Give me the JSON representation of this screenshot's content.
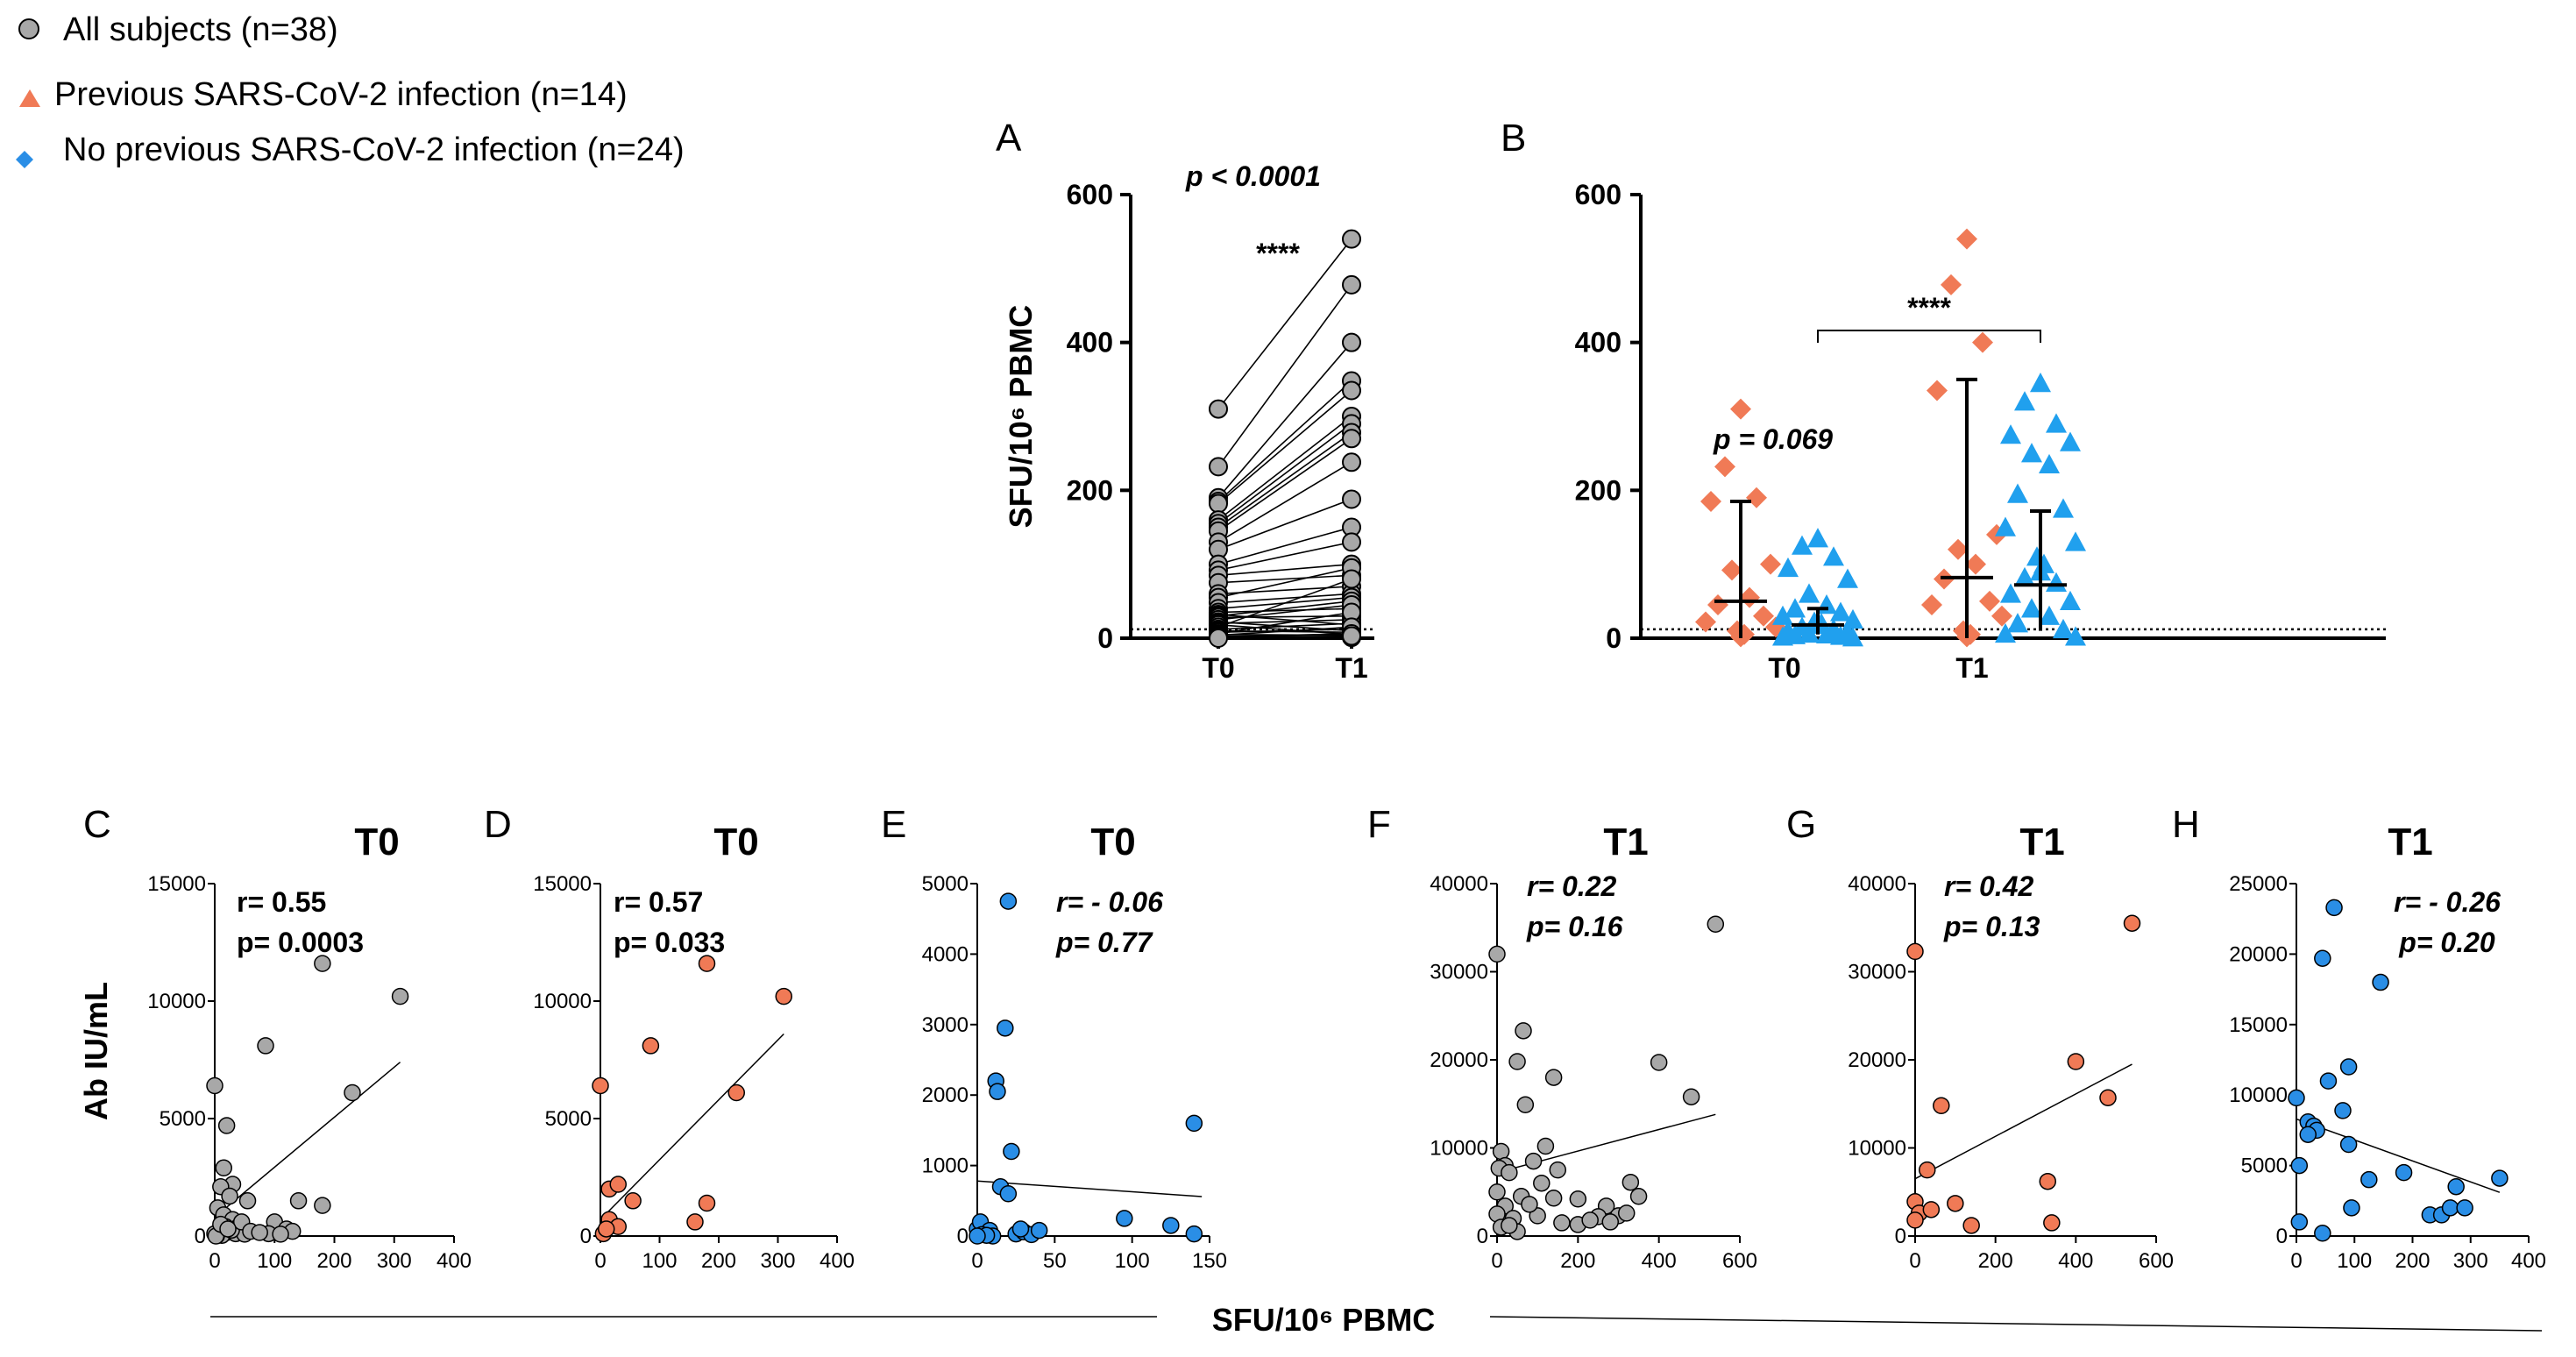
{
  "colors": {
    "gray": "#a8a8a8",
    "orange": "#f07a56",
    "blue": "#2a8ee6",
    "lightblue": "#20a0ee",
    "axis": "#000000"
  },
  "legend": [
    {
      "label": "All subjects (n=38)",
      "marker": "circle",
      "color": "#a8a8a8"
    },
    {
      "label": "Previous SARS-CoV-2 infection (n=14)",
      "marker": "triangle",
      "color": "#f07a56"
    },
    {
      "label": "No previous SARS-CoV-2 infection (n=24)",
      "marker": "diamond",
      "color": "#2a8ee6"
    }
  ],
  "shared_x_label": "SFU/10⁶ PBMC",
  "chart_data": [
    {
      "id": "A",
      "panel": "A",
      "type": "scatter",
      "title": "",
      "ylabel": "SFU/10⁶ PBMC",
      "categories": [
        "T0",
        "T1"
      ],
      "ylim": [
        0,
        600
      ],
      "yticks": [
        "0",
        "200",
        "400",
        "600"
      ],
      "annotation": "p < 0.0001",
      "stars": "****",
      "threshold": 12,
      "pairs": [
        [
          310,
          540
        ],
        [
          232,
          478
        ],
        [
          190,
          400
        ],
        [
          185,
          348
        ],
        [
          182,
          335
        ],
        [
          160,
          300
        ],
        [
          155,
          290
        ],
        [
          150,
          278
        ],
        [
          145,
          270
        ],
        [
          130,
          238
        ],
        [
          120,
          188
        ],
        [
          100,
          150
        ],
        [
          92,
          130
        ],
        [
          85,
          100
        ],
        [
          75,
          85
        ],
        [
          60,
          70
        ],
        [
          55,
          95
        ],
        [
          48,
          60
        ],
        [
          40,
          55
        ],
        [
          35,
          40
        ],
        [
          32,
          18
        ],
        [
          30,
          50
        ],
        [
          28,
          30
        ],
        [
          25,
          45
        ],
        [
          22,
          10
        ],
        [
          20,
          25
        ],
        [
          18,
          5
        ],
        [
          15,
          80
        ],
        [
          12,
          20
        ],
        [
          10,
          8
        ],
        [
          8,
          12
        ],
        [
          6,
          35
        ],
        [
          5,
          4
        ],
        [
          4,
          15
        ],
        [
          3,
          2
        ],
        [
          2,
          6
        ],
        [
          1,
          1
        ],
        [
          0,
          3
        ]
      ]
    },
    {
      "id": "B",
      "panel": "B",
      "type": "scatter",
      "categories": [
        "T0",
        "T1"
      ],
      "ylim": [
        0,
        600
      ],
      "yticks": [
        "0",
        "200",
        "400",
        "600"
      ],
      "annotation": "p = 0.069",
      "stars": "****",
      "threshold": 12,
      "series": [
        {
          "name": "Previous SARS-CoV-2 infection",
          "marker": "diamond",
          "color": "#f07a56",
          "T0": [
            310,
            232,
            190,
            185,
            100,
            92,
            55,
            45,
            30,
            22,
            15,
            10,
            5,
            2
          ],
          "T0_median": 50,
          "T0_range": [
            0,
            185
          ],
          "T1": [
            540,
            478,
            400,
            335,
            140,
            120,
            100,
            80,
            50,
            45,
            30,
            10,
            5,
            2
          ],
          "T1_median": 82,
          "T1_range": [
            0,
            350
          ]
        },
        {
          "name": "No previous SARS-CoV-2 infection",
          "marker": "triangle",
          "color": "#20a0ee",
          "T0": [
            135,
            125,
            110,
            95,
            80,
            60,
            45,
            40,
            35,
            30,
            25,
            22,
            20,
            18,
            15,
            12,
            10,
            8,
            6,
            5,
            4,
            3,
            2,
            1
          ],
          "T0_median": 18,
          "T0_range": [
            5,
            40
          ],
          "T1": [
            345,
            320,
            290,
            275,
            265,
            250,
            235,
            195,
            175,
            150,
            130,
            110,
            100,
            90,
            82,
            75,
            60,
            50,
            40,
            30,
            20,
            12,
            6,
            2
          ],
          "T1_median": 72,
          "T1_range": [
            10,
            172
          ]
        }
      ]
    },
    {
      "id": "C",
      "panel": "C",
      "type": "scatter",
      "title": "T0",
      "color": "#a8a8a8",
      "ylabel": "Ab IU/mL",
      "xlim": [
        0,
        400
      ],
      "ylim": [
        0,
        15000
      ],
      "xticks": [
        "0",
        "100",
        "200",
        "300",
        "400"
      ],
      "yticks": [
        "0",
        "5000",
        "10000",
        "15000"
      ],
      "r": "r= 0.55",
      "p": "p= 0.0003",
      "italic": false,
      "fit": [
        [
          0,
          800
        ],
        [
          310,
          7400
        ]
      ],
      "points": [
        [
          0,
          6400
        ],
        [
          180,
          11600
        ],
        [
          310,
          10200
        ],
        [
          85,
          8100
        ],
        [
          230,
          6100
        ],
        [
          20,
          4700
        ],
        [
          15,
          2900
        ],
        [
          30,
          2200
        ],
        [
          10,
          2100
        ],
        [
          25,
          1700
        ],
        [
          55,
          1500
        ],
        [
          140,
          1500
        ],
        [
          180,
          1300
        ],
        [
          5,
          1200
        ],
        [
          15,
          900
        ],
        [
          30,
          700
        ],
        [
          40,
          400
        ],
        [
          100,
          600
        ],
        [
          120,
          300
        ],
        [
          8,
          200
        ],
        [
          20,
          150
        ],
        [
          35,
          100
        ],
        [
          50,
          80
        ],
        [
          90,
          100
        ],
        [
          130,
          200
        ],
        [
          5,
          50
        ],
        [
          12,
          30
        ],
        [
          3,
          10
        ],
        [
          0,
          100
        ],
        [
          2,
          0
        ],
        [
          18,
          400
        ],
        [
          28,
          250
        ],
        [
          45,
          600
        ],
        [
          60,
          200
        ],
        [
          75,
          150
        ],
        [
          110,
          80
        ],
        [
          10,
          500
        ],
        [
          22,
          300
        ]
      ]
    },
    {
      "id": "D",
      "panel": "D",
      "type": "scatter",
      "title": "T0",
      "color": "#f07a56",
      "xlim": [
        0,
        400
      ],
      "ylim": [
        0,
        15000
      ],
      "xticks": [
        "0",
        "100",
        "200",
        "300",
        "400"
      ],
      "yticks": [
        "0",
        "5000",
        "10000",
        "15000"
      ],
      "r": "r= 0.57",
      "p": "p= 0.033",
      "italic": false,
      "fit": [
        [
          0,
          700
        ],
        [
          310,
          8600
        ]
      ],
      "points": [
        [
          0,
          6400
        ],
        [
          180,
          11600
        ],
        [
          310,
          10200
        ],
        [
          85,
          8100
        ],
        [
          230,
          6100
        ],
        [
          15,
          2000
        ],
        [
          30,
          2200
        ],
        [
          55,
          1500
        ],
        [
          180,
          1400
        ],
        [
          15,
          700
        ],
        [
          30,
          400
        ],
        [
          160,
          600
        ],
        [
          5,
          100
        ],
        [
          10,
          300
        ]
      ]
    },
    {
      "id": "E",
      "panel": "E",
      "type": "scatter",
      "title": "T0",
      "color": "#2a8ee6",
      "xlim": [
        0,
        150
      ],
      "ylim": [
        0,
        5000
      ],
      "xticks": [
        "0",
        "50",
        "100",
        "150"
      ],
      "yticks": [
        "0",
        "1000",
        "2000",
        "3000",
        "4000",
        "5000"
      ],
      "r": "r= - 0.06",
      "p": "p= 0.77",
      "italic": true,
      "fit": [
        [
          0,
          780
        ],
        [
          145,
          560
        ]
      ],
      "points": [
        [
          20,
          4750
        ],
        [
          18,
          2950
        ],
        [
          12,
          2200
        ],
        [
          13,
          2050
        ],
        [
          22,
          1200
        ],
        [
          140,
          1600
        ],
        [
          15,
          700
        ],
        [
          20,
          600
        ],
        [
          95,
          250
        ],
        [
          125,
          150
        ],
        [
          0,
          100
        ],
        [
          5,
          50
        ],
        [
          2,
          200
        ],
        [
          8,
          80
        ],
        [
          10,
          0
        ],
        [
          25,
          30
        ],
        [
          30,
          60
        ],
        [
          35,
          20
        ],
        [
          40,
          80
        ],
        [
          140,
          30
        ],
        [
          3,
          20
        ],
        [
          6,
          10
        ],
        [
          0,
          0
        ],
        [
          28,
          100
        ]
      ]
    },
    {
      "id": "F",
      "panel": "F",
      "type": "scatter",
      "title": "T1",
      "color": "#a8a8a8",
      "xlim": [
        0,
        600
      ],
      "ylim": [
        0,
        40000
      ],
      "xticks": [
        "0",
        "200",
        "400",
        "600"
      ],
      "yticks": [
        "0",
        "10000",
        "20000",
        "30000",
        "40000"
      ],
      "r": "r= 0.22",
      "p": "p= 0.16",
      "italic": true,
      "fit": [
        [
          0,
          7200
        ],
        [
          540,
          13800
        ]
      ],
      "points": [
        [
          0,
          32000
        ],
        [
          540,
          35400
        ],
        [
          65,
          23300
        ],
        [
          50,
          19800
        ],
        [
          400,
          19700
        ],
        [
          480,
          15800
        ],
        [
          140,
          18000
        ],
        [
          10,
          9600
        ],
        [
          70,
          14900
        ],
        [
          20,
          8000
        ],
        [
          5,
          7700
        ],
        [
          30,
          7200
        ],
        [
          90,
          8500
        ],
        [
          110,
          6000
        ],
        [
          150,
          7500
        ],
        [
          120,
          10200
        ],
        [
          140,
          4300
        ],
        [
          60,
          4500
        ],
        [
          20,
          3400
        ],
        [
          0,
          5000
        ],
        [
          0,
          2500
        ],
        [
          40,
          2000
        ],
        [
          10,
          1000
        ],
        [
          50,
          500
        ],
        [
          200,
          4200
        ],
        [
          270,
          3400
        ],
        [
          330,
          6100
        ],
        [
          350,
          4500
        ],
        [
          300,
          2300
        ],
        [
          250,
          2200
        ],
        [
          200,
          1300
        ],
        [
          230,
          1800
        ],
        [
          280,
          1600
        ],
        [
          320,
          2600
        ],
        [
          100,
          2300
        ],
        [
          80,
          3600
        ],
        [
          160,
          1500
        ],
        [
          30,
          1200
        ]
      ]
    },
    {
      "id": "G",
      "panel": "G",
      "type": "scatter",
      "title": "T1",
      "color": "#f07a56",
      "xlim": [
        0,
        600
      ],
      "ylim": [
        0,
        40000
      ],
      "xticks": [
        "0",
        "200",
        "400",
        "600"
      ],
      "yticks": [
        "0",
        "10000",
        "20000",
        "30000",
        "40000"
      ],
      "r": "r= 0.42",
      "p": "p= 0.13",
      "italic": true,
      "fit": [
        [
          0,
          6500
        ],
        [
          540,
          19500
        ]
      ],
      "points": [
        [
          0,
          32300
        ],
        [
          540,
          35500
        ],
        [
          400,
          19800
        ],
        [
          480,
          15700
        ],
        [
          65,
          14800
        ],
        [
          30,
          7500
        ],
        [
          0,
          3900
        ],
        [
          10,
          2600
        ],
        [
          40,
          3000
        ],
        [
          100,
          3700
        ],
        [
          140,
          1200
        ],
        [
          330,
          6200
        ],
        [
          340,
          1500
        ],
        [
          0,
          1800
        ]
      ]
    },
    {
      "id": "H",
      "panel": "H",
      "type": "scatter",
      "title": "T1",
      "color": "#2a8ee6",
      "xlim": [
        0,
        400
      ],
      "ylim": [
        0,
        25000
      ],
      "xticks": [
        "0",
        "100",
        "200",
        "300",
        "400"
      ],
      "yticks": [
        "0",
        "5000",
        "10000",
        "15000",
        "20000",
        "25000"
      ],
      "r": "r= - 0.26",
      "p": "p= 0.20",
      "italic": true,
      "fit": [
        [
          0,
          8300
        ],
        [
          350,
          3100
        ]
      ],
      "points": [
        [
          65,
          23300
        ],
        [
          45,
          19700
        ],
        [
          145,
          18000
        ],
        [
          90,
          12000
        ],
        [
          55,
          11000
        ],
        [
          0,
          9800
        ],
        [
          80,
          8900
        ],
        [
          20,
          8100
        ],
        [
          30,
          7800
        ],
        [
          35,
          7500
        ],
        [
          20,
          7200
        ],
        [
          90,
          6500
        ],
        [
          5,
          5000
        ],
        [
          125,
          4000
        ],
        [
          185,
          4500
        ],
        [
          230,
          1500
        ],
        [
          250,
          1500
        ],
        [
          265,
          2000
        ],
        [
          275,
          3500
        ],
        [
          290,
          2000
        ],
        [
          350,
          4100
        ],
        [
          95,
          2000
        ],
        [
          5,
          1000
        ],
        [
          45,
          200
        ]
      ]
    }
  ]
}
